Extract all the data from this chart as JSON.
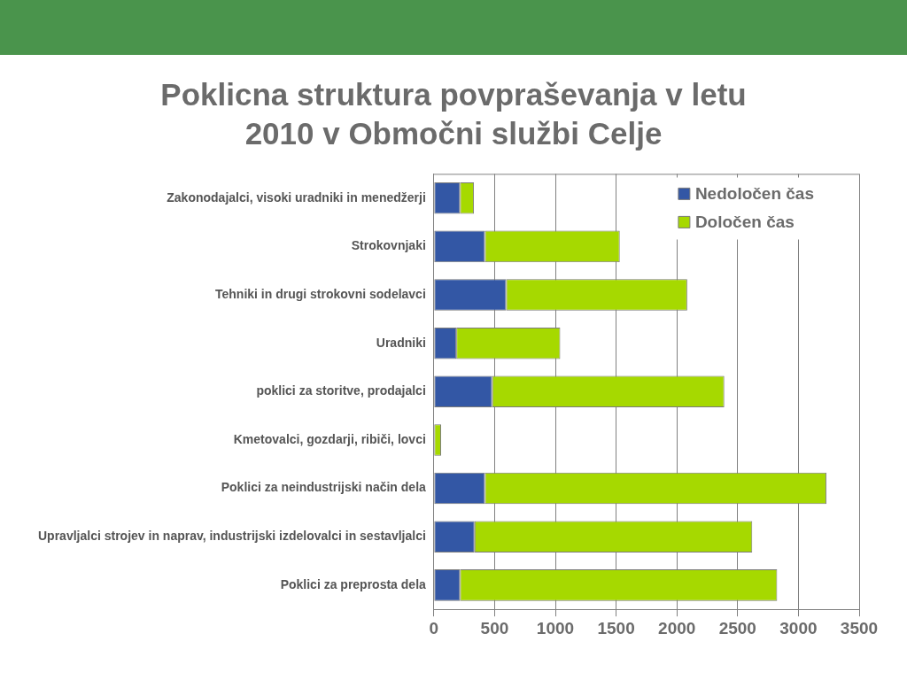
{
  "chart_data": {
    "type": "bar",
    "orientation": "horizontal",
    "stacked": true,
    "title": "Poklicna struktura povpraševanja v letu 2010 v Območni službi Celje",
    "categories": [
      "Zakonodajalci, visoki uradniki in menedžerji",
      "Strokovnjaki",
      "Tehniki in drugi strokovni sodelavci",
      "Uradniki",
      "poklici za storitve, prodajalci",
      "Kmetovalci, gozdarji, ribiči, lovci",
      "Poklici za neindustrijski način dela",
      "Upravljalci strojev in naprav, industrijski izdelovalci in sestavljalci",
      "Poklici za preprosta dela"
    ],
    "series": [
      {
        "name": "Nedoločen čas",
        "color": "#3357a5",
        "values": [
          215,
          420,
          595,
          185,
          480,
          0,
          420,
          335,
          215
        ]
      },
      {
        "name": "Določen čas",
        "color": "#a6d900",
        "values": [
          115,
          1110,
          1490,
          855,
          1910,
          60,
          2810,
          2285,
          2610
        ]
      }
    ],
    "xlim": [
      0,
      3500
    ],
    "xticks": [
      0,
      500,
      1000,
      1500,
      2000,
      2500,
      3000,
      3500
    ],
    "grid": "x",
    "legend": "top right"
  }
}
